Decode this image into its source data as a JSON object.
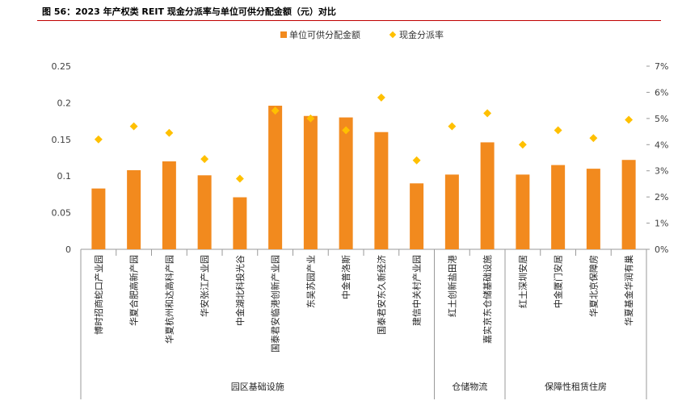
{
  "chart_data": {
    "type": "bar",
    "title": "图 56：2023 年产权类 REIT 现金分派率与单位可供分配金额（元）对比",
    "categories": [
      "博时招商蛇口产业园",
      "华夏合肥高新产园",
      "华夏杭州和达高科产园",
      "华安张江产业园",
      "中金湖北科投光谷",
      "国泰君安临港创新产业园",
      "东吴苏园产业",
      "中金普洛斯",
      "国泰君安东久新经济",
      "建信中关村产业园",
      "红土创新盐田港",
      "嘉实京东仓储基础设施",
      "红土深圳安居",
      "中金厦门安居",
      "华夏北京保障房",
      "华夏基金华润有巢"
    ],
    "groups": [
      {
        "label": "园区基础设施",
        "count": 10
      },
      {
        "label": "仓储物流",
        "count": 2
      },
      {
        "label": "保障性租赁住房",
        "count": 4
      }
    ],
    "series": [
      {
        "name": "单位可供分配金额",
        "type": "bar",
        "axis": "left",
        "color": "#f28a1e",
        "values": [
          0.083,
          0.108,
          0.12,
          0.101,
          0.071,
          0.196,
          0.182,
          0.18,
          0.16,
          0.09,
          0.102,
          0.146,
          0.102,
          0.115,
          0.11,
          0.122
        ]
      },
      {
        "name": "现金分派率",
        "type": "scatter",
        "axis": "right",
        "color": "#ffc000",
        "values": [
          4.2,
          4.7,
          4.45,
          3.45,
          2.7,
          5.3,
          5.0,
          4.55,
          5.8,
          3.4,
          4.7,
          5.2,
          4.0,
          4.55,
          4.25,
          4.95
        ]
      }
    ],
    "y_left": {
      "min": 0,
      "max": 0.25,
      "ticks": [
        "0",
        "0.05",
        "0.1",
        "0.15",
        "0.2",
        "0.25"
      ],
      "tick_values": [
        0,
        0.05,
        0.1,
        0.15,
        0.2,
        0.25
      ]
    },
    "y_right": {
      "min": 0,
      "max": 7,
      "ticks": [
        "0%",
        "1%",
        "2%",
        "3%",
        "4%",
        "5%",
        "6%",
        "7%"
      ],
      "tick_values": [
        0,
        1,
        2,
        3,
        4,
        5,
        6,
        7
      ]
    },
    "legend_position": "top-center",
    "grid": false
  }
}
